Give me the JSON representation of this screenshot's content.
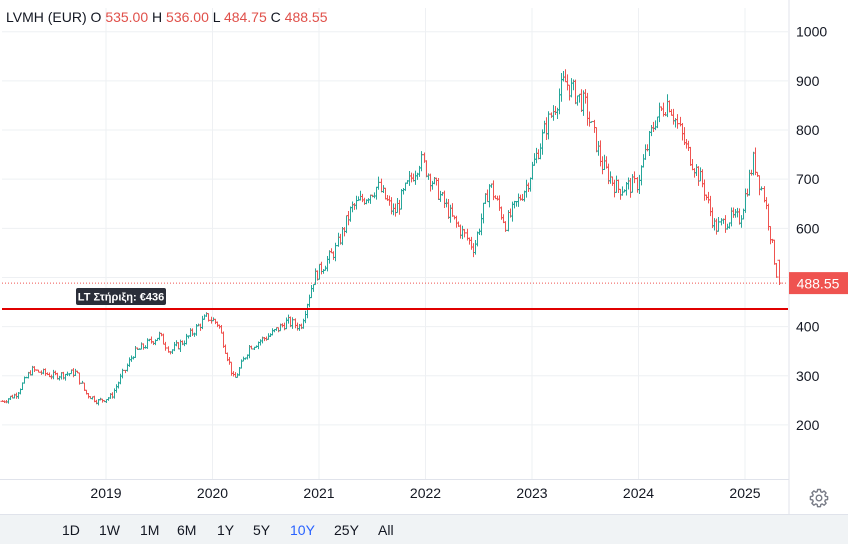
{
  "header": {
    "symbol": "LVMH (EUR)",
    "o_label": "O",
    "o_value": "535.00",
    "h_label": "H",
    "h_value": "536.00",
    "l_label": "L",
    "l_value": "484.75",
    "c_label": "C",
    "c_value": "488.55"
  },
  "colors": {
    "up": "#26a69a",
    "down": "#ef5350",
    "support": "#e00000",
    "last": "#ef5350",
    "active_range": "#2962ff"
  },
  "last_price_label": "488.55",
  "support_label": "LT Στήριξη: €436",
  "range_buttons": [
    {
      "label": "1D",
      "active": false
    },
    {
      "label": "1W",
      "active": false
    },
    {
      "label": "1M",
      "active": false
    },
    {
      "label": "6M",
      "active": false
    },
    {
      "label": "1Y",
      "active": false
    },
    {
      "label": "5Y",
      "active": false
    },
    {
      "label": "10Y",
      "active": true
    },
    {
      "label": "25Y",
      "active": false
    },
    {
      "label": "All",
      "active": false
    }
  ],
  "chart_data": {
    "type": "ohlc",
    "title": "LVMH (EUR)",
    "y_axis_ticks": [
      "200",
      "300",
      "400",
      "500",
      "600",
      "700",
      "800",
      "900",
      "1000"
    ],
    "x_axis_ticks": [
      "2019",
      "2020",
      "2021",
      "2022",
      "2023",
      "2024",
      "2025"
    ],
    "ylim": [
      90,
      1050
    ],
    "xlim": [
      2018.0,
      2025.45
    ],
    "support_level": 436,
    "last_price": 488.55,
    "anchors": [
      {
        "t": 2018.02,
        "p": 248
      },
      {
        "t": 2018.15,
        "p": 262
      },
      {
        "t": 2018.3,
        "p": 312
      },
      {
        "t": 2018.5,
        "p": 300
      },
      {
        "t": 2018.72,
        "p": 307
      },
      {
        "t": 2018.8,
        "p": 265
      },
      {
        "t": 2018.92,
        "p": 248
      },
      {
        "t": 2019.05,
        "p": 258
      },
      {
        "t": 2019.25,
        "p": 345
      },
      {
        "t": 2019.5,
        "p": 382
      },
      {
        "t": 2019.6,
        "p": 350
      },
      {
        "t": 2019.75,
        "p": 375
      },
      {
        "t": 2019.95,
        "p": 420
      },
      {
        "t": 2020.05,
        "p": 405
      },
      {
        "t": 2020.2,
        "p": 290
      },
      {
        "t": 2020.35,
        "p": 360
      },
      {
        "t": 2020.55,
        "p": 385
      },
      {
        "t": 2020.7,
        "p": 410
      },
      {
        "t": 2020.82,
        "p": 400
      },
      {
        "t": 2020.95,
        "p": 500
      },
      {
        "t": 2021.15,
        "p": 555
      },
      {
        "t": 2021.3,
        "p": 640
      },
      {
        "t": 2021.55,
        "p": 685
      },
      {
        "t": 2021.7,
        "p": 630
      },
      {
        "t": 2021.95,
        "p": 740
      },
      {
        "t": 2022.1,
        "p": 680
      },
      {
        "t": 2022.25,
        "p": 620
      },
      {
        "t": 2022.45,
        "p": 560
      },
      {
        "t": 2022.6,
        "p": 690
      },
      {
        "t": 2022.75,
        "p": 610
      },
      {
        "t": 2022.95,
        "p": 690
      },
      {
        "t": 2023.12,
        "p": 800
      },
      {
        "t": 2023.3,
        "p": 900
      },
      {
        "t": 2023.5,
        "p": 850
      },
      {
        "t": 2023.65,
        "p": 730
      },
      {
        "t": 2023.8,
        "p": 680
      },
      {
        "t": 2023.98,
        "p": 690
      },
      {
        "t": 2024.15,
        "p": 820
      },
      {
        "t": 2024.28,
        "p": 860
      },
      {
        "t": 2024.45,
        "p": 760
      },
      {
        "t": 2024.6,
        "p": 690
      },
      {
        "t": 2024.72,
        "p": 600
      },
      {
        "t": 2024.85,
        "p": 620
      },
      {
        "t": 2024.95,
        "p": 620
      },
      {
        "t": 2025.08,
        "p": 740
      },
      {
        "t": 2025.18,
        "p": 660
      },
      {
        "t": 2025.3,
        "p": 495
      }
    ]
  }
}
